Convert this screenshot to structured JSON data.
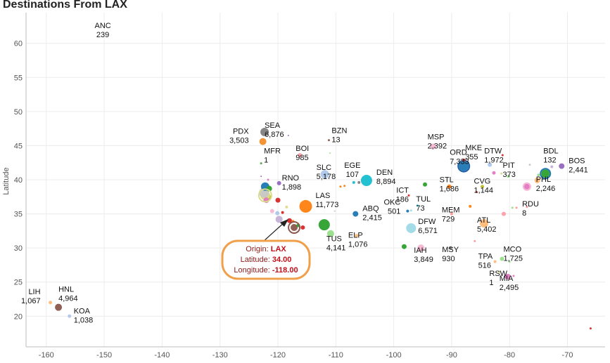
{
  "page_title": "Destinations From LAX",
  "colors": {
    "tooltip_border": "#f0a04b",
    "tooltip_text": "#8b1a1a",
    "tooltip_value": "#c0101a",
    "grid": "#ececec"
  },
  "tooltip": {
    "origin_label": "Origin: ",
    "origin_value": "LAX",
    "lat_label": "Latitude: ",
    "lat_value": "34.00",
    "lon_label": "Longitude: ",
    "lon_value": "-118.00"
  },
  "chart_data": {
    "type": "scatter",
    "title": "Destinations From LAX",
    "xlabel": "",
    "ylabel": "Latitude",
    "xlim": [
      -163.5,
      -63.5
    ],
    "ylim": [
      15.5,
      64.5
    ],
    "grid": true,
    "x_ticks": [
      -160,
      -150,
      -140,
      -130,
      -120,
      -110,
      -100,
      -90,
      -80,
      -70
    ],
    "y_ticks": [
      20,
      25,
      30,
      35,
      40,
      45,
      50,
      55,
      60
    ],
    "labeled_points": [
      {
        "code": "ANC",
        "count": "239",
        "x": -150,
        "y": 61.2,
        "r": 0,
        "color": "#ffffff"
      },
      {
        "code": "PDX",
        "count": "3,503",
        "x": -122.6,
        "y": 45.6,
        "r": 5,
        "color": "#f28e2b"
      },
      {
        "code": "SEA",
        "count": "6,876",
        "x": -122.3,
        "y": 47.0,
        "r": 6,
        "color": "#7f7f7f"
      },
      {
        "code": "MFR",
        "count": "1",
        "x": -122.9,
        "y": 42.4,
        "r": 1.5,
        "color": "#59a14f"
      },
      {
        "code": "BOI",
        "count": "985",
        "x": -116.2,
        "y": 43.6,
        "r": 3,
        "color": "#ff9da7"
      },
      {
        "code": "BZN",
        "count": "13",
        "x": -111.2,
        "y": 45.8,
        "r": 1.5,
        "color": "#8c564b"
      },
      {
        "code": "EGE",
        "count": "107",
        "x": -106.9,
        "y": 39.6,
        "r": 2,
        "color": "#17becf"
      },
      {
        "code": "SLC",
        "count": "5,178",
        "x": -111.9,
        "y": 40.8,
        "r": 6,
        "color": "#aec7e8"
      },
      {
        "code": "DEN",
        "count": "8,894",
        "x": -104.7,
        "y": 39.9,
        "r": 8,
        "color": "#17becf"
      },
      {
        "code": "RNO",
        "count": "1,898",
        "x": -119.8,
        "y": 39.5,
        "r": 3,
        "color": "#9467bd"
      },
      {
        "code": "LAS",
        "count": "11,773",
        "x": -115.2,
        "y": 36.1,
        "r": 9,
        "color": "#ff7f0e"
      },
      {
        "code": "ABQ",
        "count": "2,415",
        "x": -106.6,
        "y": 35.0,
        "r": 4,
        "color": "#1f77b4"
      },
      {
        "code": "ICT",
        "count": "186",
        "x": -97.4,
        "y": 37.7,
        "r": 1.5,
        "color": "#d62728"
      },
      {
        "code": "OKC",
        "count": "501",
        "x": -97.6,
        "y": 35.4,
        "r": 2,
        "color": "#1f77b4"
      },
      {
        "code": "TUL",
        "count": "73",
        "x": -95.9,
        "y": 36.2,
        "r": 1.5,
        "color": "#17becf"
      },
      {
        "code": "MSP",
        "count": "2,392",
        "x": -93.2,
        "y": 44.9,
        "r": 4,
        "color": "#f7b6d2"
      },
      {
        "code": "ORD",
        "count": "7,333",
        "x": -87.9,
        "y": 42.0,
        "r": 7,
        "color": "#1f77b4"
      },
      {
        "code": "MKE",
        "count": "355",
        "x": -87.9,
        "y": 42.9,
        "r": 2,
        "color": "#d62728"
      },
      {
        "code": "DTW",
        "count": "1,972",
        "x": -83.4,
        "y": 42.2,
        "r": 3,
        "color": "#aec7e8"
      },
      {
        "code": "BDL",
        "count": "132",
        "x": -72.7,
        "y": 41.9,
        "r": 2,
        "color": "#c5b0d5"
      },
      {
        "code": "BOS",
        "count": "2,441",
        "x": -71.0,
        "y": 42.0,
        "r": 4,
        "color": "#9467bd"
      },
      {
        "code": "STL",
        "count": "1,686",
        "x": -90.4,
        "y": 39.0,
        "r": 3,
        "color": "#ff7f0e"
      },
      {
        "code": "CVG",
        "count": "1,144",
        "x": -84.7,
        "y": 39.0,
        "r": 2.5,
        "color": "#bcbd22"
      },
      {
        "code": "PIT",
        "count": "373",
        "x": -80.2,
        "y": 40.5,
        "r": 2,
        "color": "#98df8a"
      },
      {
        "code": "PHL",
        "count": "2,246",
        "x": -75.2,
        "y": 39.9,
        "r": 4,
        "color": "#ffbb78"
      },
      {
        "code": "RDU",
        "count": "8",
        "x": -78.8,
        "y": 35.9,
        "r": 1.5,
        "color": "#ff9896"
      },
      {
        "code": "MEM",
        "count": "729",
        "x": -90.0,
        "y": 35.0,
        "r": 2,
        "color": "#ff9896"
      },
      {
        "code": "DFW",
        "count": "6,571",
        "x": -97.0,
        "y": 32.9,
        "r": 7,
        "color": "#9edae5"
      },
      {
        "code": "ATL",
        "count": "5,402",
        "x": -84.4,
        "y": 33.6,
        "r": 6,
        "color": "#ffbb78"
      },
      {
        "code": "ELP",
        "count": "1,076",
        "x": -106.4,
        "y": 31.8,
        "r": 2.5,
        "color": "#ffbb78"
      },
      {
        "code": "TUS",
        "count": "4,141",
        "x": -110.9,
        "y": 32.1,
        "r": 5,
        "color": "#98df8a"
      },
      {
        "code": "IAH",
        "count": "3,849",
        "x": -95.3,
        "y": 30.0,
        "r": 5,
        "color": "#f7b6d2"
      },
      {
        "code": "MSY",
        "count": "930",
        "x": -90.2,
        "y": 30.0,
        "r": 2.5,
        "color": "#7f7f7f"
      },
      {
        "code": "TPA",
        "count": "516",
        "x": -82.5,
        "y": 28.0,
        "r": 2,
        "color": "#ffbb78"
      },
      {
        "code": "MCO",
        "count": "1,725",
        "x": -81.3,
        "y": 28.4,
        "r": 3,
        "color": "#98df8a"
      },
      {
        "code": "RSW",
        "count": "1",
        "x": -81.8,
        "y": 26.5,
        "r": 1.5,
        "color": "#dbdb8d"
      },
      {
        "code": "MIA",
        "count": "2,495",
        "x": -80.3,
        "y": 25.8,
        "r": 4,
        "color": "#e377c2"
      },
      {
        "code": "LIH",
        "count": "1,067",
        "x": -159.3,
        "y": 22.0,
        "r": 2.5,
        "color": "#ffbb78"
      },
      {
        "code": "HNL",
        "count": "4,964",
        "x": -157.9,
        "y": 21.3,
        "r": 5,
        "color": "#8c564b"
      },
      {
        "code": "KOA",
        "count": "1,038",
        "x": -156.0,
        "y": 20.0,
        "r": 2.5,
        "color": "#aec7e8"
      }
    ],
    "other_points": [
      {
        "x": -121.9,
        "y": 37.4,
        "r": 6,
        "color": "#bcbd22"
      },
      {
        "x": -122.2,
        "y": 37.7,
        "r": 7,
        "color": "#dbdb8d"
      },
      {
        "x": -122.4,
        "y": 38.1,
        "r": 7,
        "color": "#c7c7c7"
      },
      {
        "x": -122.2,
        "y": 39.0,
        "r": 6,
        "color": "#1f77b4"
      },
      {
        "x": -121.5,
        "y": 38.7,
        "r": 4,
        "color": "#2ca02c"
      },
      {
        "x": -122.0,
        "y": 37.0,
        "r": 4,
        "color": "#e377c2"
      },
      {
        "x": -120.0,
        "y": 37.0,
        "r": 3.5,
        "color": "#d62728"
      },
      {
        "x": -121.0,
        "y": 35.4,
        "r": 3,
        "color": "#f7b6d2"
      },
      {
        "x": -119.8,
        "y": 34.2,
        "r": 5,
        "color": "#c5b0d5"
      },
      {
        "x": -120.1,
        "y": 35.1,
        "r": 3,
        "color": "#aec7e8"
      },
      {
        "x": -119.2,
        "y": 35.2,
        "r": 2,
        "color": "#d62728"
      },
      {
        "x": -118.0,
        "y": 34.0,
        "r": 3.5,
        "color": "#d62728"
      },
      {
        "x": -117.2,
        "y": 33.0,
        "r": 5,
        "color": "#8c564b"
      },
      {
        "x": -117.4,
        "y": 33.9,
        "r": 2,
        "color": "#ff7f0e"
      },
      {
        "x": -116.5,
        "y": 33.3,
        "r": 2.5,
        "color": "#2ca02c"
      },
      {
        "x": -115.7,
        "y": 33.0,
        "r": 3,
        "color": "#d62728"
      },
      {
        "x": -118.5,
        "y": 36.0,
        "r": 2,
        "color": "#dbdb8d"
      },
      {
        "x": -112.0,
        "y": 33.4,
        "r": 8,
        "color": "#2ca02c"
      },
      {
        "x": -109.2,
        "y": 39.0,
        "r": 1.5,
        "color": "#ff7f0e"
      },
      {
        "x": -108.5,
        "y": 39.1,
        "r": 1.5,
        "color": "#ff7f0e"
      },
      {
        "x": -106.0,
        "y": 39.6,
        "r": 2,
        "color": "#7f7f7f"
      },
      {
        "x": -98.2,
        "y": 30.2,
        "r": 3.5,
        "color": "#2ca02c"
      },
      {
        "x": -94.6,
        "y": 39.3,
        "r": 3,
        "color": "#2ca02c"
      },
      {
        "x": -97.0,
        "y": 35.5,
        "r": 1.5,
        "color": "#9edae5"
      },
      {
        "x": -81.2,
        "y": 43.6,
        "r": 1.5,
        "color": "#d62728"
      },
      {
        "x": -82.7,
        "y": 41.0,
        "r": 2.5,
        "color": "#e377c2"
      },
      {
        "x": -81.4,
        "y": 40.9,
        "r": 1.5,
        "color": "#dbdb8d"
      },
      {
        "x": -85.7,
        "y": 38.2,
        "r": 1.5,
        "color": "#d62728"
      },
      {
        "x": -86.8,
        "y": 36.1,
        "r": 2,
        "color": "#ff7f0e"
      },
      {
        "x": -77.0,
        "y": 39.0,
        "r": 4,
        "color": "#e377c2"
      },
      {
        "x": -75.0,
        "y": 40.7,
        "r": 2,
        "color": "#98df8a"
      },
      {
        "x": -73.8,
        "y": 40.9,
        "r": 6,
        "color": "#2ca02c"
      },
      {
        "x": -76.5,
        "y": 42.2,
        "r": 1.5,
        "color": "#c7c7c7"
      },
      {
        "x": -81.0,
        "y": 35.0,
        "r": 3,
        "color": "#ff9da7"
      },
      {
        "x": -77.0,
        "y": 36.0,
        "r": 1.5,
        "color": "#ff9896"
      },
      {
        "x": -79.5,
        "y": 35.9,
        "r": 1.5,
        "color": "#98df8a"
      },
      {
        "x": -86.0,
        "y": 31.0,
        "r": 1.5,
        "color": "#ff9896"
      },
      {
        "x": -79.3,
        "y": 25.9,
        "r": 1.5,
        "color": "#e377c2"
      },
      {
        "x": -80.0,
        "y": 28.0,
        "r": 1.5,
        "color": "#98df8a"
      },
      {
        "x": -66.0,
        "y": 18.2,
        "r": 1.5,
        "color": "#d62728"
      },
      {
        "x": -122.9,
        "y": 40.5,
        "r": 1,
        "color": "#9467bd"
      },
      {
        "x": -111.0,
        "y": 43.9,
        "r": 1,
        "color": "#98df8a"
      },
      {
        "x": -118.2,
        "y": 46.5,
        "r": 1,
        "color": "#9467bd"
      },
      {
        "x": -110.2,
        "y": 35.4,
        "r": 1,
        "color": "#c7c7c7"
      },
      {
        "x": -121.7,
        "y": 40.0,
        "r": 1.5,
        "color": "#e377c2"
      }
    ]
  }
}
